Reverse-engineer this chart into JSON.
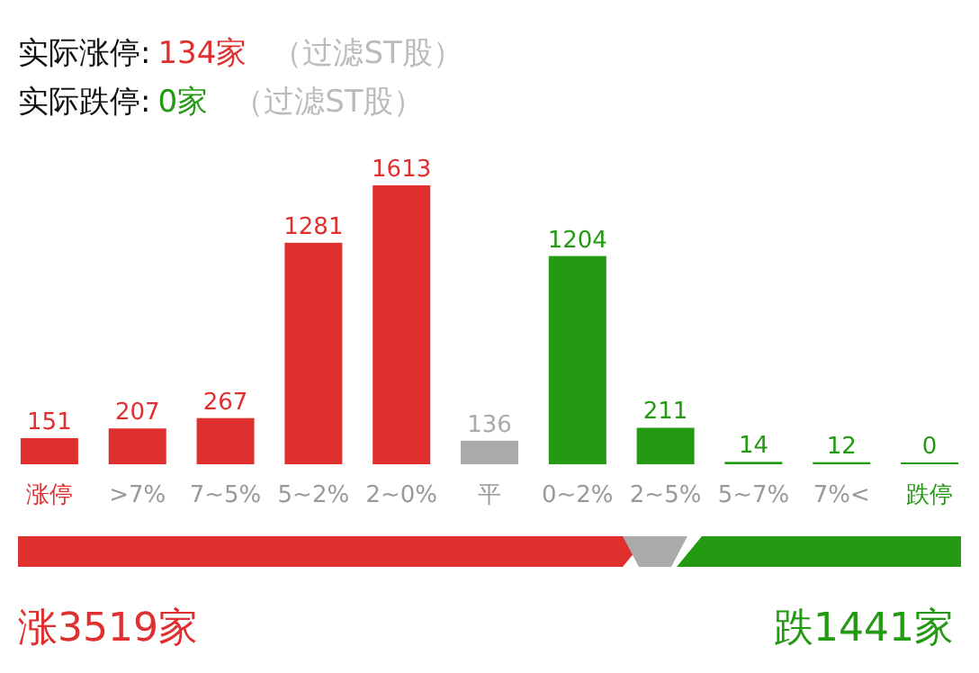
{
  "chart_data": [
    {
      "type": "bar",
      "title": "实际涨停: 134家 （过滤ST股）",
      "subtitle": "实际跌停: 0家 （过滤ST股）",
      "relative": false,
      "data_labels": true,
      "categories": [
        "涨停",
        ">7%",
        "7~5%",
        "5~2%",
        "2~0%",
        "平",
        "0~2%",
        "2~5%",
        "5~7%",
        "7%<",
        "跌停"
      ],
      "values": [
        151,
        207,
        267,
        1281,
        1613,
        136,
        1204,
        211,
        14,
        12,
        0
      ],
      "colors": [
        "#e02f2f",
        "#e02f2f",
        "#e02f2f",
        "#e02f2f",
        "#e02f2f",
        "#aaaaaa",
        "#239a12",
        "#239a12",
        "#239a12",
        "#239a12",
        "#239a12"
      ]
    },
    {
      "type": "other",
      "annotations": [
        "涨3519家",
        "跌1441家"
      ],
      "colors": [
        "#e02f2f",
        "#aaaaaa",
        "#239a12"
      ]
    }
  ]
}
